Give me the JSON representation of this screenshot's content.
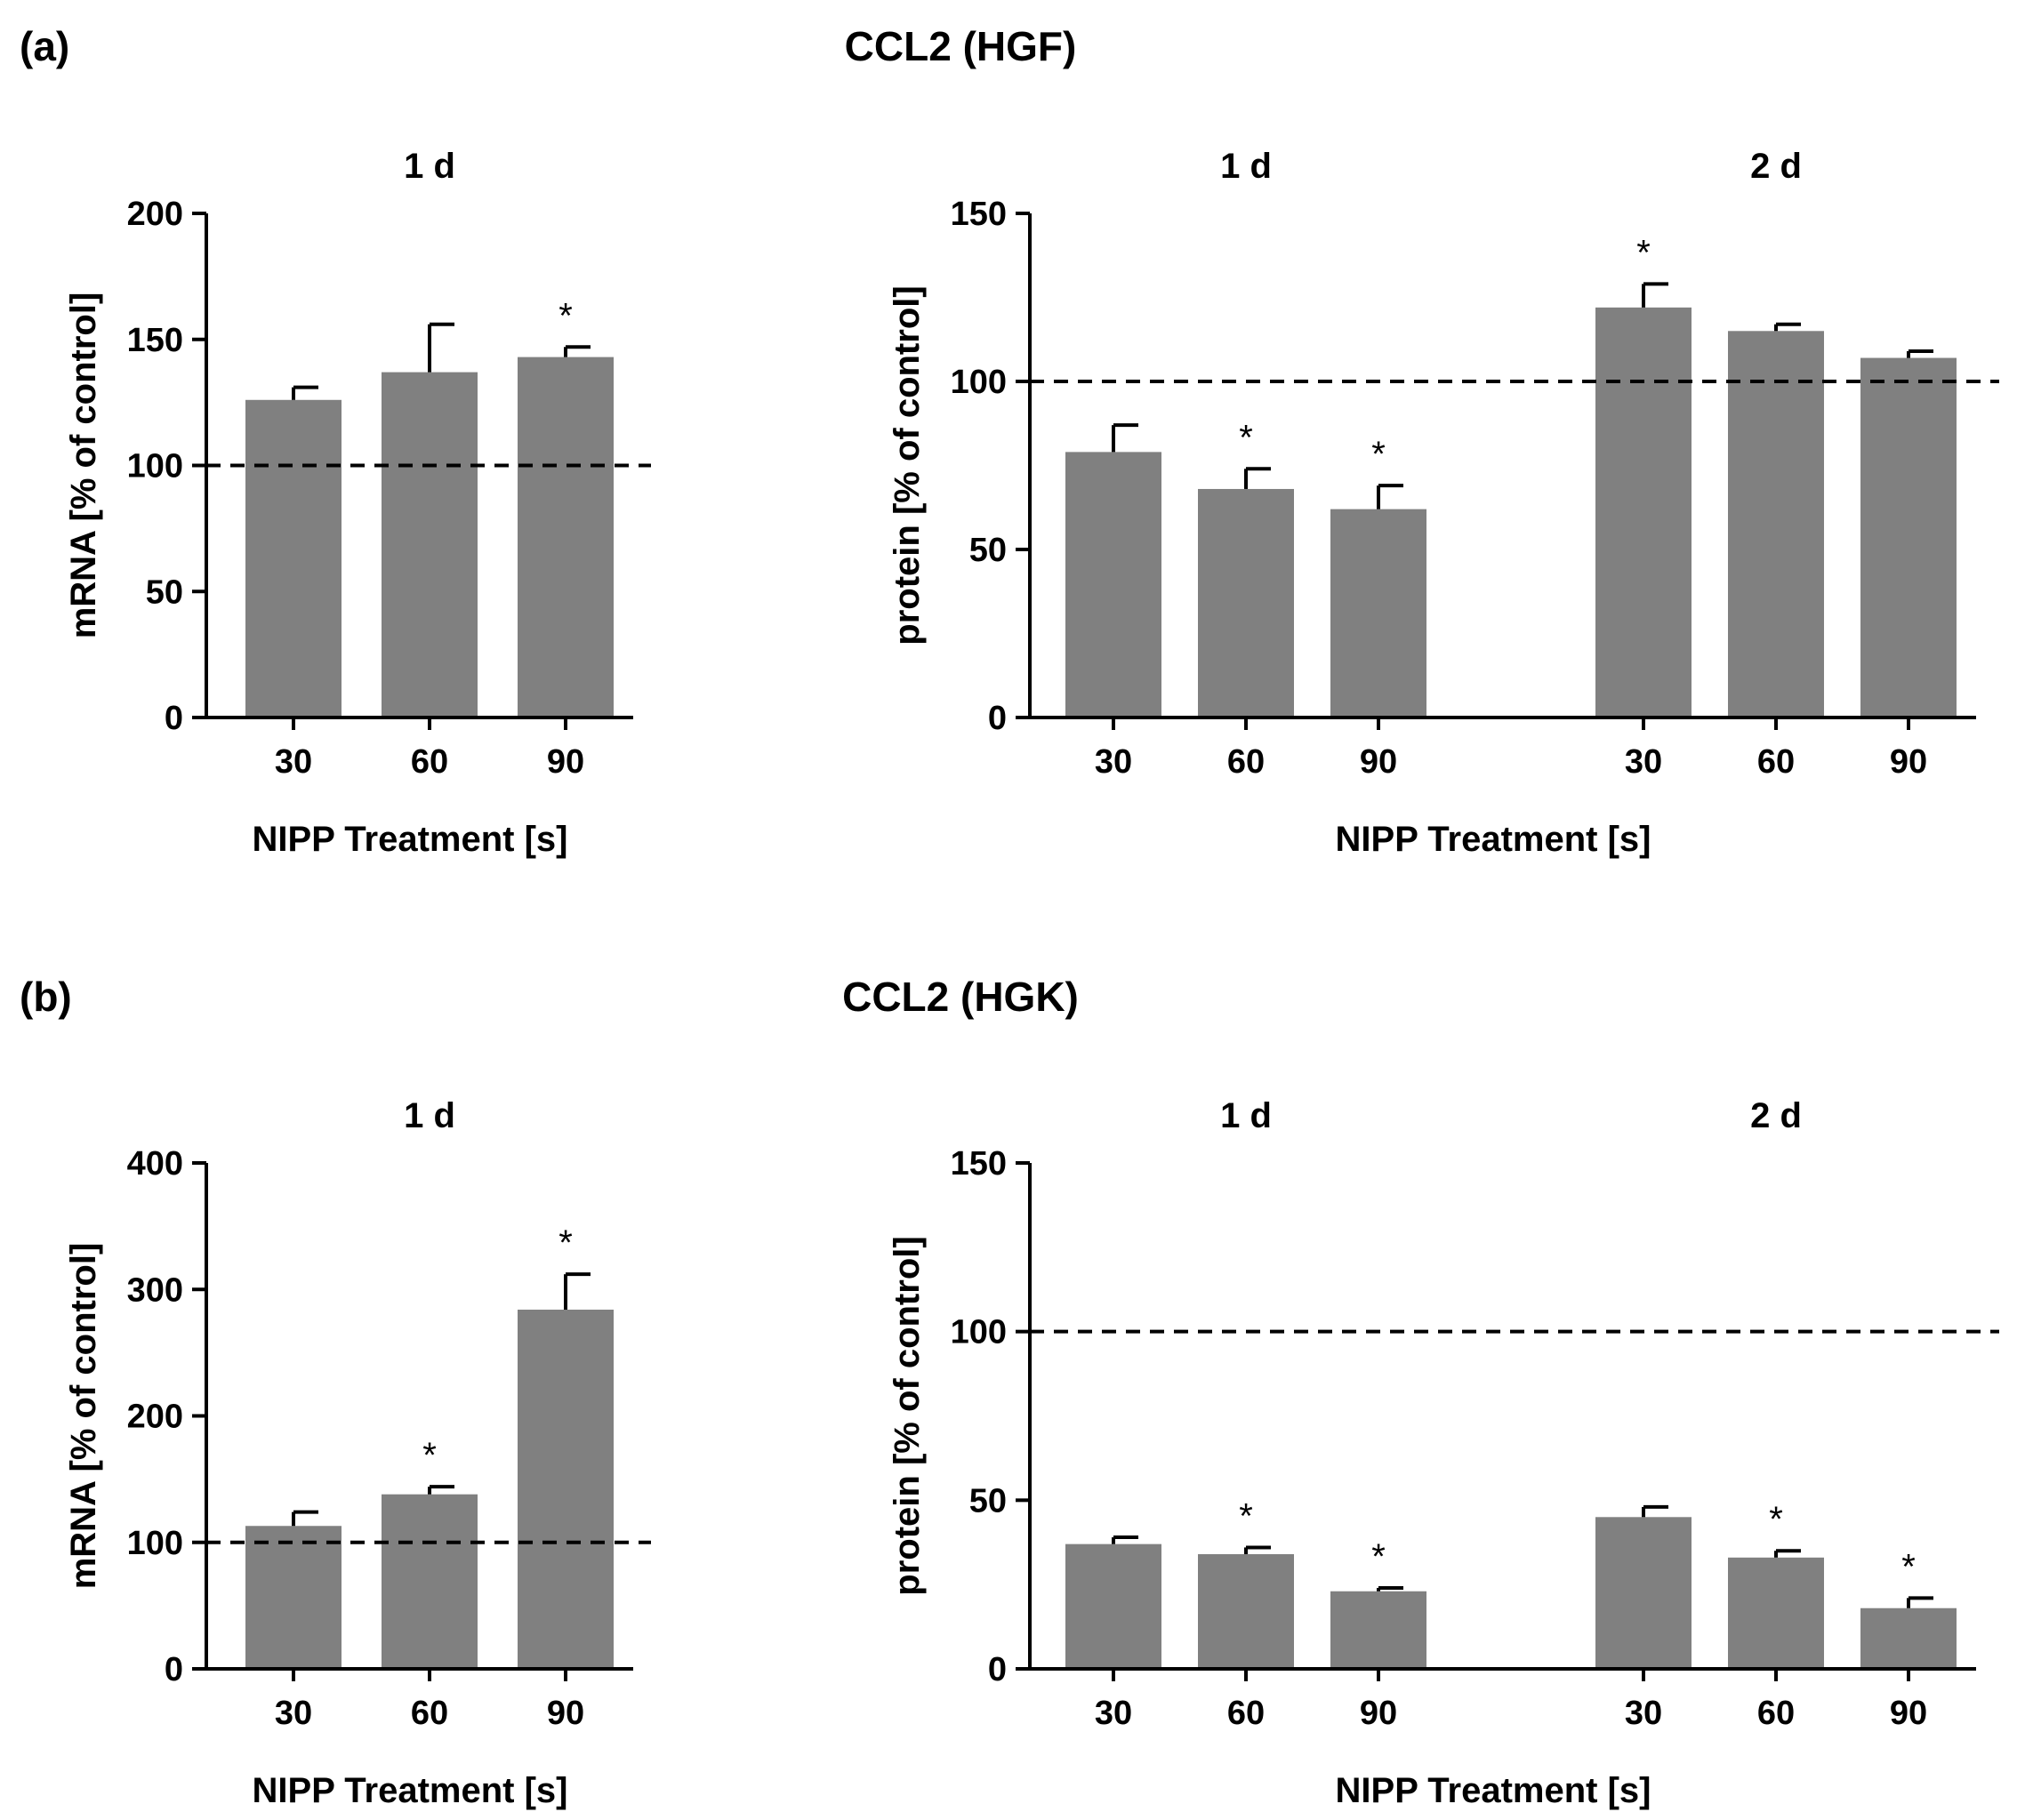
{
  "figure": {
    "panel_a_label": "(a)",
    "panel_b_label": "(b)",
    "title_a": "CCL2 (HGF)",
    "title_b": "CCL2 (HGK)"
  },
  "colors": {
    "bar": "#808080",
    "axis": "#000000",
    "reference": "#000000"
  },
  "chart_data": [
    {
      "id": "a-mrna",
      "type": "bar",
      "groups": [
        {
          "label": "1 d",
          "categories": [
            "30",
            "60",
            "90"
          ],
          "values": [
            126,
            137,
            143
          ],
          "errors": [
            5,
            19,
            4
          ],
          "significant": [
            false,
            false,
            true
          ]
        }
      ],
      "ylabel": "mRNA [% of control]",
      "xlabel": "NIPP Treatment [s]",
      "ylim": [
        0,
        200
      ],
      "yticks": [
        0,
        50,
        100,
        150,
        200
      ],
      "reference_line": 100
    },
    {
      "id": "a-protein",
      "type": "bar",
      "groups": [
        {
          "label": "1 d",
          "categories": [
            "30",
            "60",
            "90"
          ],
          "values": [
            79,
            68,
            62
          ],
          "errors": [
            8,
            6,
            7
          ],
          "significant": [
            false,
            true,
            true
          ]
        },
        {
          "label": "2 d",
          "categories": [
            "30",
            "60",
            "90"
          ],
          "values": [
            122,
            115,
            107
          ],
          "errors": [
            7,
            2,
            2
          ],
          "significant": [
            true,
            false,
            false
          ]
        }
      ],
      "ylabel": "protein [% of control]",
      "xlabel": "NIPP Treatment [s]",
      "ylim": [
        0,
        150
      ],
      "yticks": [
        0,
        50,
        100,
        150
      ],
      "reference_line": 100
    },
    {
      "id": "b-mrna",
      "type": "bar",
      "groups": [
        {
          "label": "1 d",
          "categories": [
            "30",
            "60",
            "90"
          ],
          "values": [
            113,
            138,
            284
          ],
          "errors": [
            11,
            6,
            28
          ],
          "significant": [
            false,
            true,
            true
          ]
        }
      ],
      "ylabel": "mRNA [% of control]",
      "xlabel": "NIPP Treatment [s]",
      "ylim": [
        0,
        400
      ],
      "yticks": [
        0,
        100,
        200,
        300,
        400
      ],
      "reference_line": 100
    },
    {
      "id": "b-protein",
      "type": "bar",
      "groups": [
        {
          "label": "1 d",
          "categories": [
            "30",
            "60",
            "90"
          ],
          "values": [
            37,
            34,
            23
          ],
          "errors": [
            2,
            2,
            1
          ],
          "significant": [
            false,
            true,
            true
          ]
        },
        {
          "label": "2 d",
          "categories": [
            "30",
            "60",
            "90"
          ],
          "values": [
            45,
            33,
            18
          ],
          "errors": [
            3,
            2,
            3
          ],
          "significant": [
            false,
            true,
            true
          ]
        }
      ],
      "ylabel": "protein [% of control]",
      "xlabel": "NIPP Treatment [s]",
      "ylim": [
        0,
        150
      ],
      "yticks": [
        0,
        50,
        100,
        150
      ],
      "reference_line": 100
    }
  ]
}
